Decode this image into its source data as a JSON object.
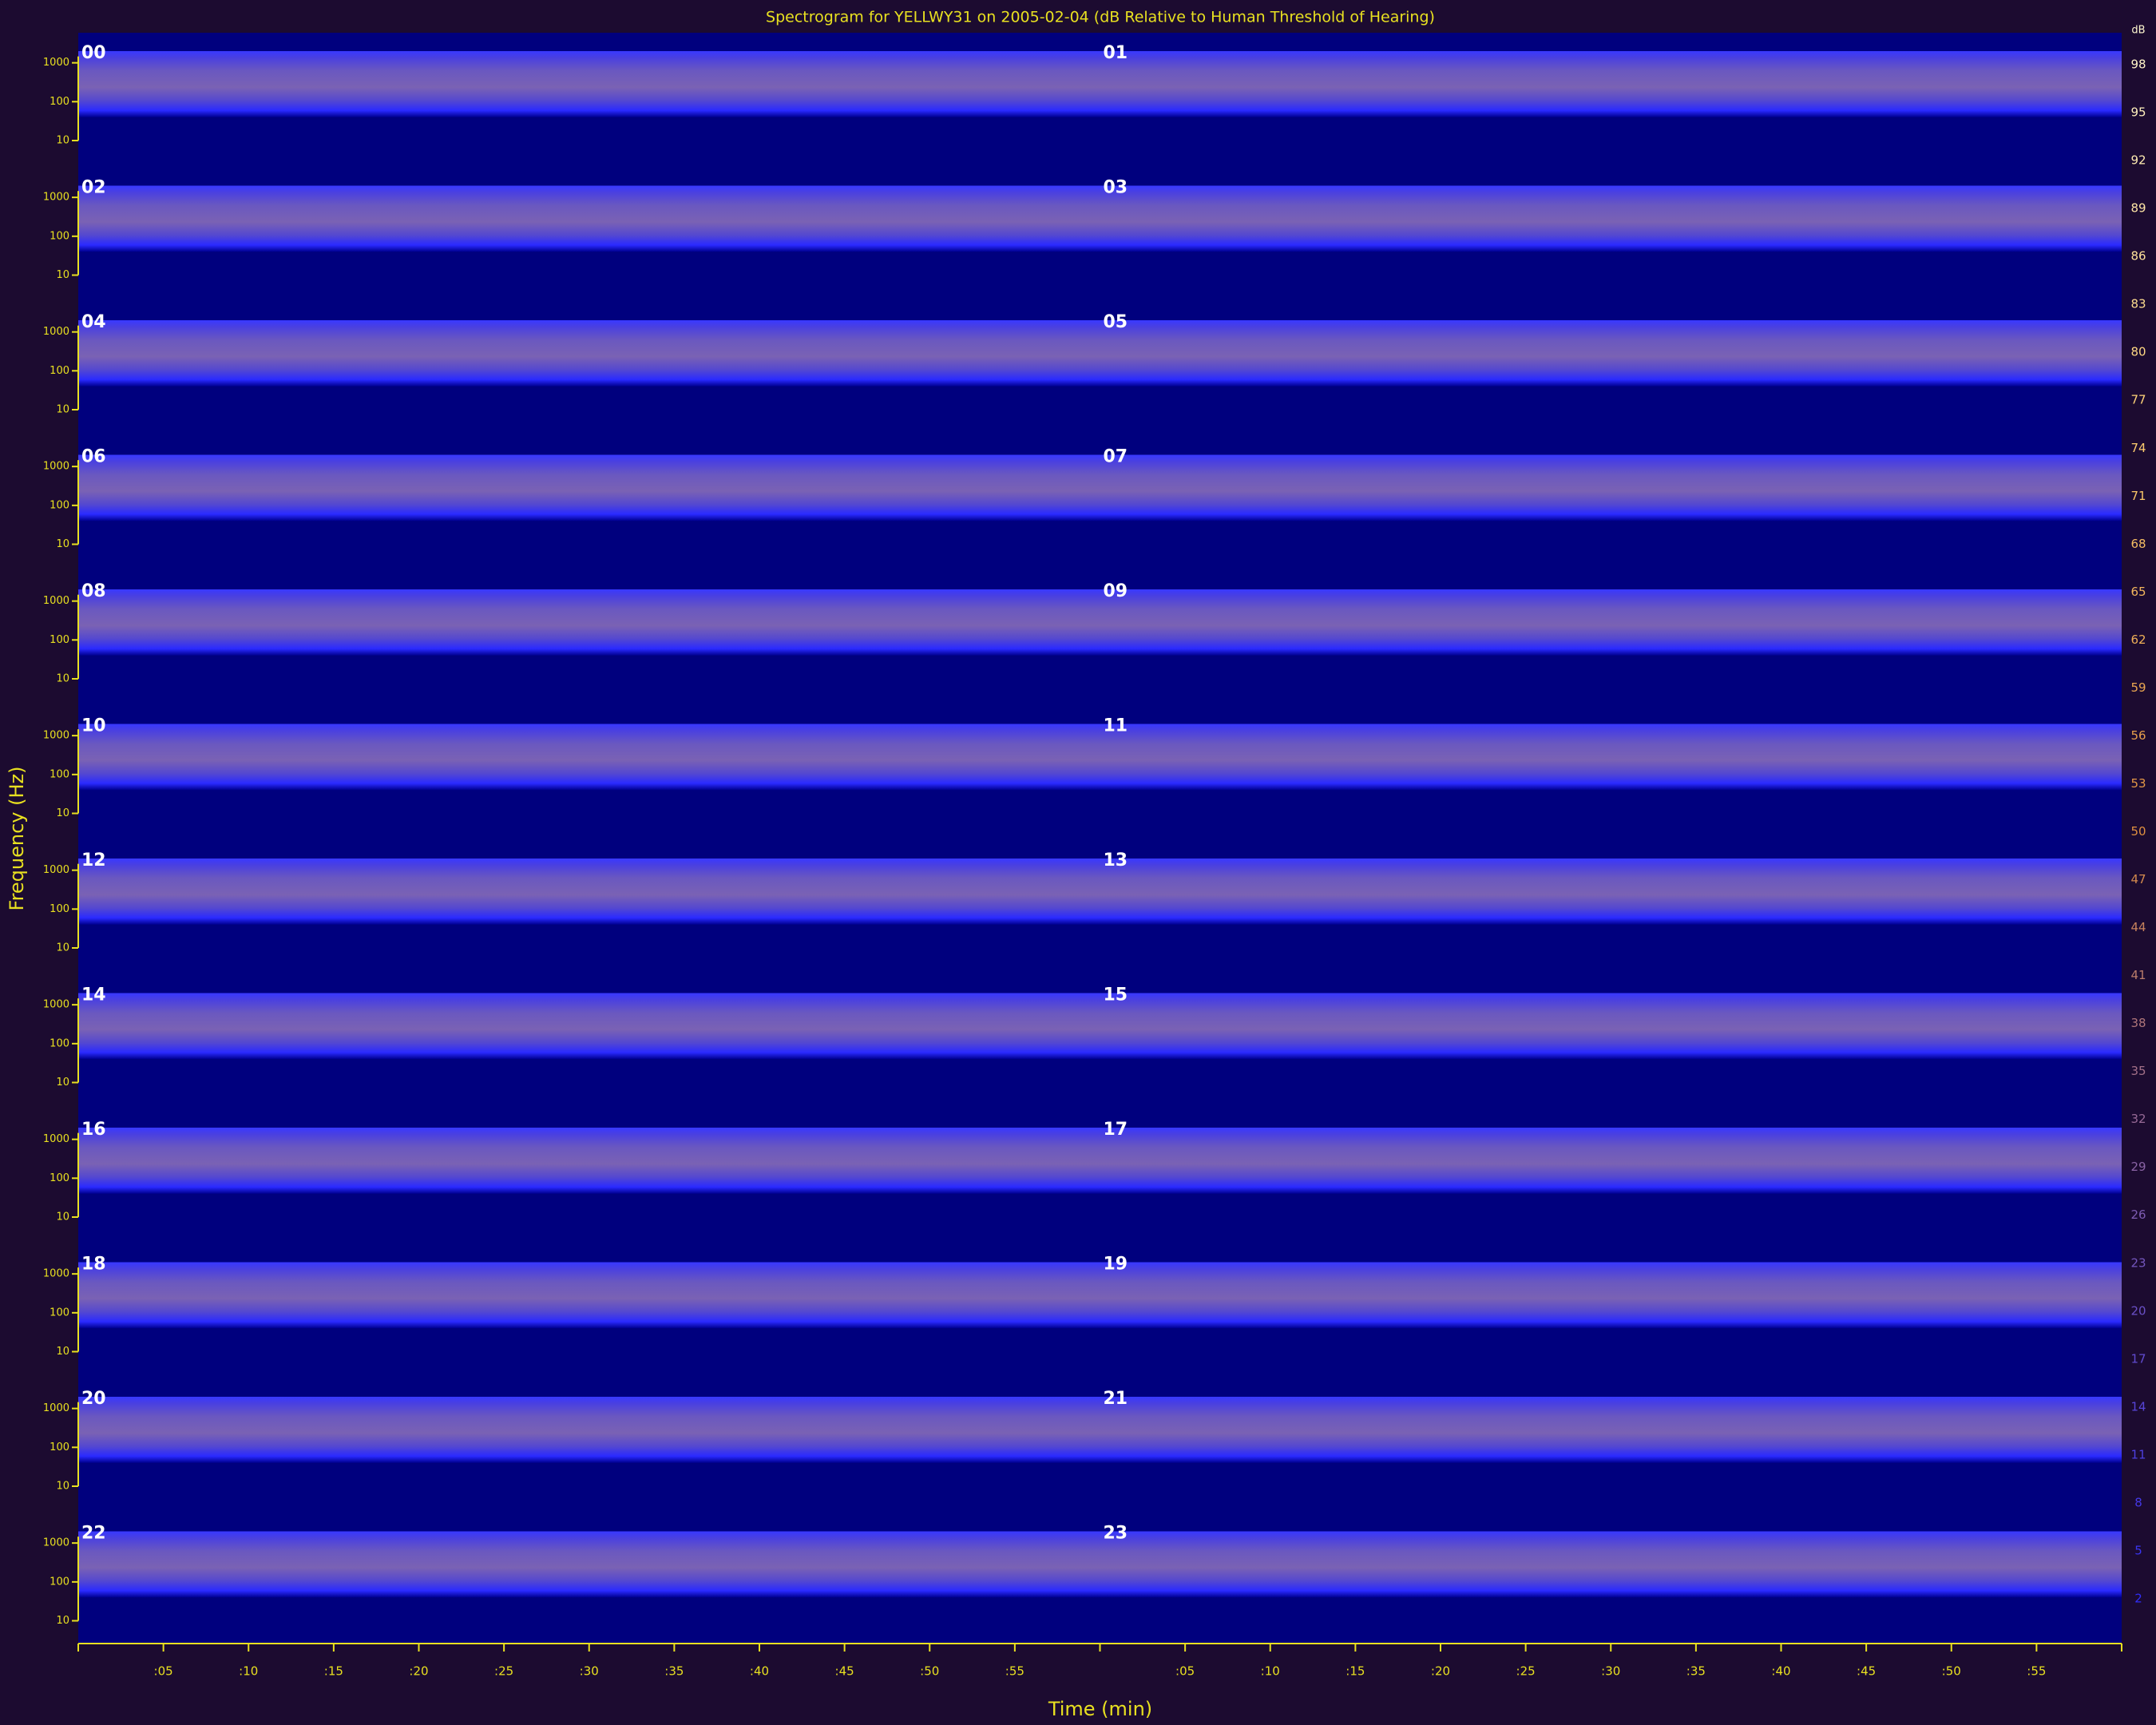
{
  "chart_data": {
    "type": "spectrogram",
    "title": "Spectrogram for YELLWY31 on 2005-02-04 (dB Relative to Human Threshold of Hearing)",
    "xlabel": "Time (min)",
    "ylabel": "Frequency (Hz)",
    "panels": [
      "00",
      "01",
      "02",
      "03",
      "04",
      "05",
      "06",
      "07",
      "08",
      "09",
      "10",
      "11",
      "12",
      "13",
      "14",
      "15",
      "16",
      "17",
      "18",
      "19",
      "20",
      "21",
      "22",
      "23"
    ],
    "columns": 2,
    "xlim": [
      0,
      60
    ],
    "xticks": [
      {
        "value": 5,
        "label": ":05"
      },
      {
        "value": 10,
        "label": ":10"
      },
      {
        "value": 15,
        "label": ":15"
      },
      {
        "value": 20,
        "label": ":20"
      },
      {
        "value": 25,
        "label": ":25"
      },
      {
        "value": 30,
        "label": ":30"
      },
      {
        "value": 35,
        "label": ":35"
      },
      {
        "value": 40,
        "label": ":40"
      },
      {
        "value": 45,
        "label": ":45"
      },
      {
        "value": 50,
        "label": ":50"
      },
      {
        "value": 55,
        "label": ":55"
      }
    ],
    "ylim": [
      10,
      2000
    ],
    "log_y": true,
    "yticks": [
      1000,
      100,
      10
    ],
    "colorbar_label": "dB",
    "clim": [
      0,
      100
    ],
    "colorbar_ticks": [
      98,
      95,
      92,
      89,
      86,
      83,
      80,
      77,
      74,
      71,
      68,
      65,
      62,
      59,
      56,
      53,
      50,
      47,
      44,
      41,
      38,
      35,
      32,
      29,
      26,
      23,
      20,
      17,
      14,
      11,
      8,
      5,
      2
    ],
    "colormap": [
      "#2a2aff",
      "#7a5ab8",
      "#e09040",
      "#ffd070",
      "#fff8d0"
    ],
    "axis_color": "#e8e020"
  }
}
